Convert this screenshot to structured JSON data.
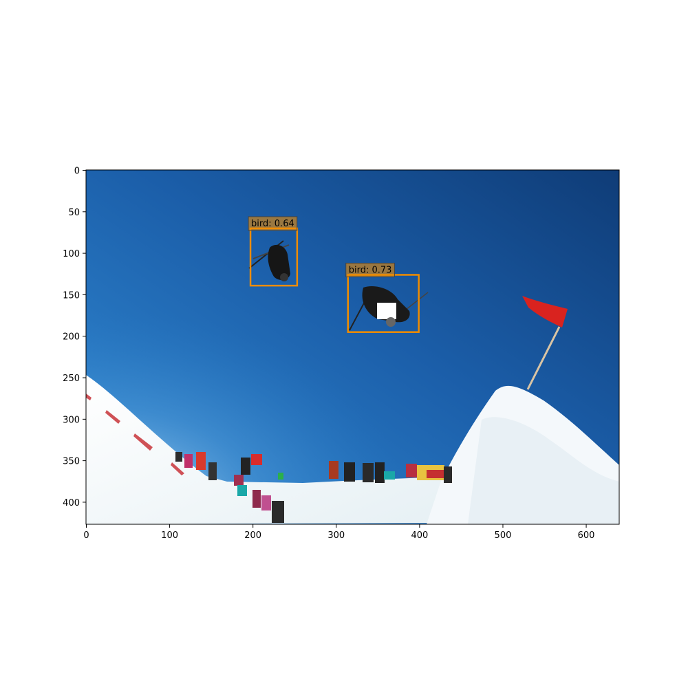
{
  "image": {
    "width": 640,
    "height": 427,
    "description_colors": {
      "sky_top": "#0e3d78",
      "sky_mid": "#1f68b5",
      "sky_light": "#8fc2e8",
      "snow": "#f7fbfd",
      "flag_red": "#d9231f"
    }
  },
  "axes": {
    "x_ticks": [
      {
        "value": 0,
        "label": "0"
      },
      {
        "value": 100,
        "label": "100"
      },
      {
        "value": 200,
        "label": "200"
      },
      {
        "value": 300,
        "label": "300"
      },
      {
        "value": 400,
        "label": "400"
      },
      {
        "value": 500,
        "label": "500"
      },
      {
        "value": 600,
        "label": "600"
      }
    ],
    "y_ticks": [
      {
        "value": 0,
        "label": "0"
      },
      {
        "value": 50,
        "label": "50"
      },
      {
        "value": 100,
        "label": "100"
      },
      {
        "value": 150,
        "label": "150"
      },
      {
        "value": 200,
        "label": "200"
      },
      {
        "value": 250,
        "label": "250"
      },
      {
        "value": 300,
        "label": "300"
      },
      {
        "value": 350,
        "label": "350"
      },
      {
        "value": 400,
        "label": "400"
      }
    ]
  },
  "detections": [
    {
      "label": "bird: 0.64",
      "x1": 197,
      "y1": 70,
      "x2": 253,
      "y2": 139,
      "color": "#f08c00"
    },
    {
      "label": "bird: 0.73",
      "x1": 314,
      "y1": 126,
      "x2": 399,
      "y2": 195,
      "color": "#f08c00"
    }
  ]
}
